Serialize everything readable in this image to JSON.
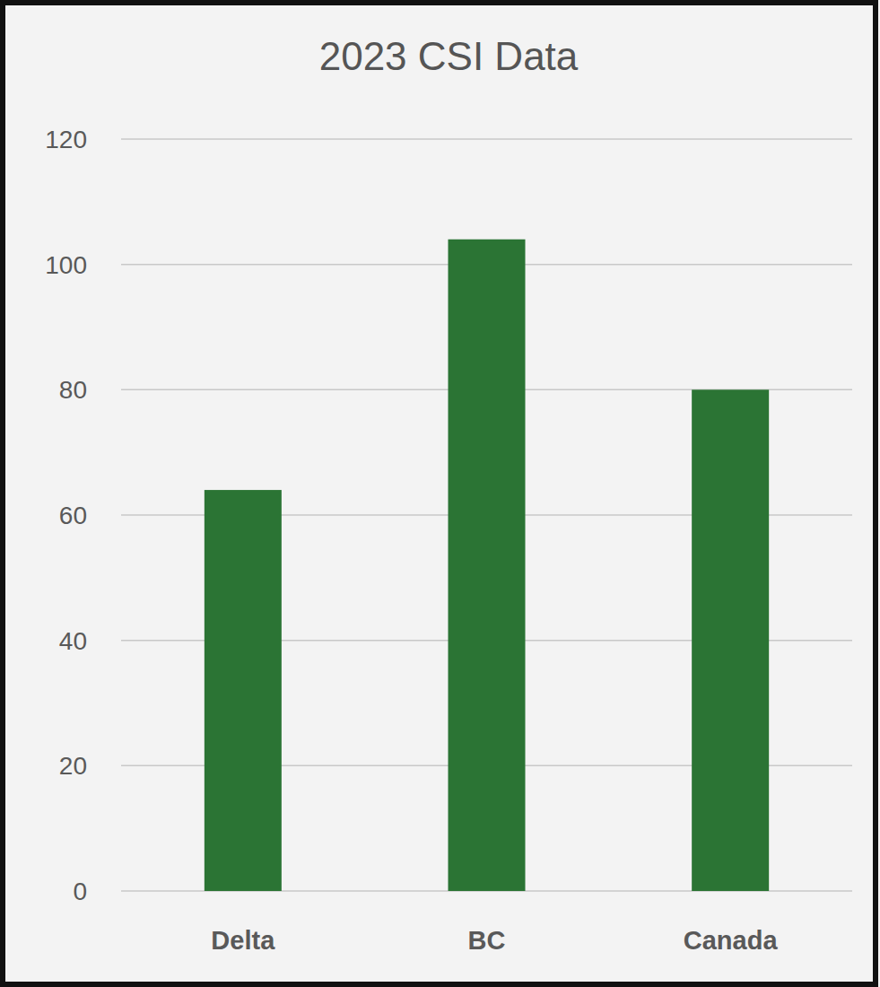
{
  "chart_data": {
    "type": "bar",
    "title": "2023 CSI Data",
    "categories": [
      "Delta",
      "BC",
      "Canada"
    ],
    "values": [
      64,
      104,
      80
    ],
    "color": "#2b7434",
    "ylim": [
      0,
      120
    ],
    "yticks": [
      0,
      20,
      40,
      60,
      80,
      100,
      120
    ],
    "grid": true
  }
}
